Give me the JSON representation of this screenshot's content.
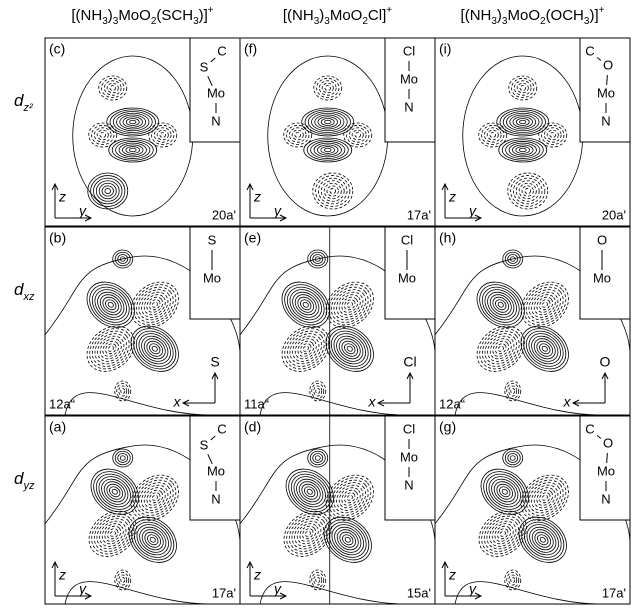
{
  "columns": [
    {
      "header": [
        "[(NH",
        "3",
        ")",
        "3",
        "MoO",
        "2",
        "(SCH",
        "3",
        ")]",
        "+"
      ]
    },
    {
      "header": [
        "[(NH",
        "3",
        ")",
        "3",
        "MoO",
        "2",
        "Cl]",
        "+"
      ]
    },
    {
      "header": [
        "[(NH",
        "3",
        ")",
        "3",
        "MoO",
        "2",
        "(OCH",
        "3",
        ")]",
        "+"
      ]
    }
  ],
  "rows": [
    {
      "symbol": "d",
      "subscript": "z²"
    },
    {
      "symbol": "d",
      "subscript": "xz"
    },
    {
      "symbol": "d",
      "subscript": "yz"
    }
  ],
  "panels": [
    [
      {
        "label": "(c)",
        "orbital": "20a'",
        "axis_vertical": "z",
        "axis_horizontal": "y",
        "inset": [
          "C",
          "S",
          "Mo",
          "N"
        ]
      },
      {
        "label": "(f)",
        "orbital": "17a'",
        "axis_vertical": "z",
        "axis_horizontal": "y",
        "inset": [
          "Cl",
          "Mo",
          "N"
        ]
      },
      {
        "label": "(i)",
        "orbital": "20a'",
        "axis_vertical": "z",
        "axis_horizontal": "y",
        "inset": [
          "C",
          "O",
          "Mo",
          "N"
        ]
      }
    ],
    [
      {
        "label": "(b)",
        "orbital": "12a“",
        "axis_vertical": "S",
        "axis_horizontal": "x",
        "inset": [
          "S",
          "Mo"
        ]
      },
      {
        "label": "(e)",
        "orbital": "11a“",
        "axis_vertical": "Cl",
        "axis_horizontal": "x",
        "inset": [
          "Cl",
          "Mo"
        ]
      },
      {
        "label": "(h)",
        "orbital": "12a“",
        "axis_vertical": "O",
        "axis_horizontal": "x",
        "inset": [
          "O",
          "Mo"
        ]
      }
    ],
    [
      {
        "label": "(a)",
        "orbital": "17a'",
        "axis_vertical": "z",
        "axis_horizontal": "y",
        "inset": [
          "C",
          "S",
          "Mo",
          "N"
        ]
      },
      {
        "label": "(d)",
        "orbital": "15a'",
        "axis_vertical": "z",
        "axis_horizontal": "y",
        "inset": [
          "Cl",
          "Mo",
          "N"
        ]
      },
      {
        "label": "(g)",
        "orbital": "17a'",
        "axis_vertical": "z",
        "axis_horizontal": "y",
        "inset": [
          "C",
          "O",
          "Mo",
          "N"
        ]
      }
    ]
  ]
}
